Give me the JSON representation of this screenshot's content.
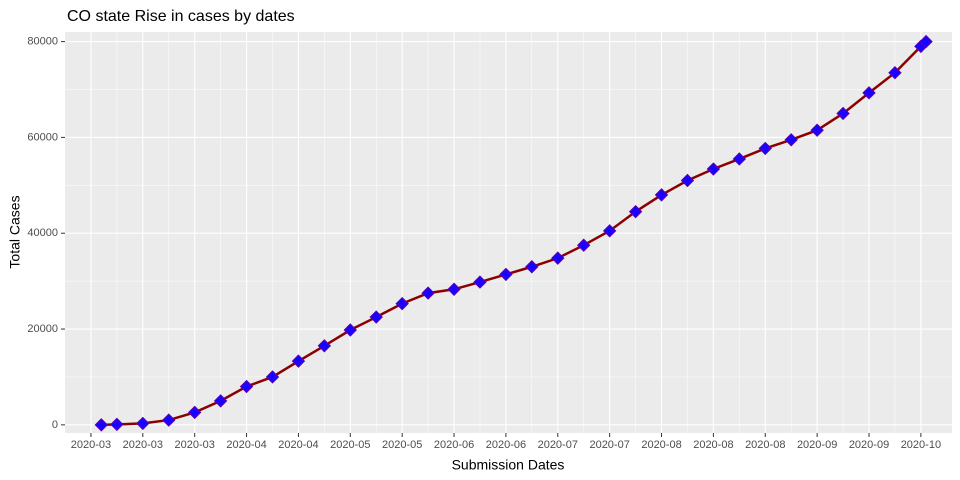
{
  "chart_data": {
    "type": "line",
    "title": "CO state Rise in cases by dates",
    "xlabel": "Submission Dates",
    "ylabel": "Total Cases",
    "xlim": [
      -0.5,
      16.6
    ],
    "ylim": [
      -1700,
      82000
    ],
    "xticks": [
      {
        "value": 0,
        "label": "2020-03"
      },
      {
        "value": 1,
        "label": "2020-03"
      },
      {
        "value": 2,
        "label": "2020-03"
      },
      {
        "value": 3,
        "label": "2020-04"
      },
      {
        "value": 4,
        "label": "2020-04"
      },
      {
        "value": 5,
        "label": "2020-05"
      },
      {
        "value": 6,
        "label": "2020-05"
      },
      {
        "value": 7,
        "label": "2020-06"
      },
      {
        "value": 8,
        "label": "2020-06"
      },
      {
        "value": 9,
        "label": "2020-07"
      },
      {
        "value": 10,
        "label": "2020-07"
      },
      {
        "value": 11,
        "label": "2020-08"
      },
      {
        "value": 12,
        "label": "2020-08"
      },
      {
        "value": 13,
        "label": "2020-08"
      },
      {
        "value": 14,
        "label": "2020-09"
      },
      {
        "value": 15,
        "label": "2020-09"
      },
      {
        "value": 16,
        "label": "2020-10"
      }
    ],
    "yticks": [
      0,
      20000,
      40000,
      60000,
      80000
    ],
    "grid": true,
    "line_color": "#8b0000",
    "point_color": "#1a00ff",
    "point_edge_color": "#5a00b0",
    "x": [
      0.2,
      0.5,
      1,
      1.5,
      2,
      2.5,
      3,
      3.5,
      4,
      4.5,
      5,
      5.5,
      6,
      6.5,
      7,
      7.5,
      8,
      8.5,
      9,
      9.5,
      10,
      10.5,
      11,
      11.5,
      12,
      12.5,
      13,
      13.5,
      14,
      14.5,
      15,
      15.5,
      16,
      16.1
    ],
    "values": [
      0,
      100,
      300,
      1000,
      2600,
      5000,
      8000,
      10000,
      13300,
      16500,
      19800,
      22500,
      25300,
      27500,
      28300,
      29800,
      31400,
      33000,
      34800,
      37500,
      40500,
      44500,
      48000,
      51000,
      53400,
      55500,
      57700,
      59500,
      61500,
      65000,
      69300,
      73500,
      79000,
      80000
    ]
  }
}
